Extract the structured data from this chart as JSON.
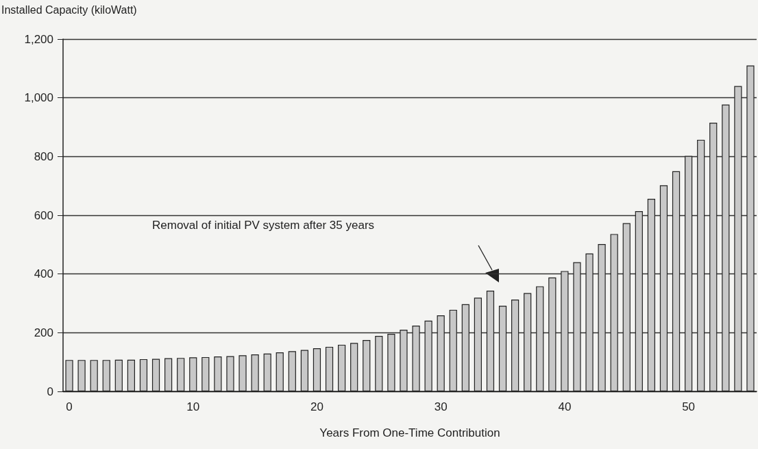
{
  "chart_data": {
    "type": "bar",
    "ylabel": "Installed Capacity (kiloWatt)",
    "xlabel": "Years From One-Time Contribution",
    "categories": [
      "0",
      null,
      null,
      null,
      null,
      null,
      null,
      null,
      null,
      null,
      "10",
      null,
      null,
      null,
      null,
      null,
      null,
      null,
      null,
      null,
      "20",
      null,
      null,
      null,
      null,
      null,
      null,
      null,
      null,
      null,
      "30",
      null,
      null,
      null,
      null,
      null,
      null,
      null,
      null,
      null,
      "40",
      null,
      null,
      null,
      null,
      null,
      null,
      null,
      null,
      null,
      "50",
      null,
      null,
      null,
      null,
      null
    ],
    "values": [
      107,
      107,
      107,
      107,
      108,
      108,
      110,
      111,
      113,
      114,
      116,
      117,
      119,
      120,
      123,
      126,
      129,
      133,
      137,
      141,
      147,
      152,
      159,
      165,
      175,
      189,
      196,
      210,
      224,
      241,
      259,
      278,
      297,
      319,
      343,
      292,
      313,
      335,
      358,
      388,
      410,
      440,
      470,
      502,
      536,
      573,
      614,
      656,
      702,
      750,
      802,
      857,
      915,
      977,
      1040,
      1110
    ],
    "color": "#c8c8c8",
    "ylim": [
      0,
      1200
    ],
    "yticks": [
      0,
      200,
      400,
      600,
      800,
      {
        "value": 1000,
        "label": "1,000"
      },
      {
        "value": 1200,
        "label": "1,200"
      }
    ],
    "grid": "y",
    "annotations": [
      "Removal of initial PV system after 35 years"
    ]
  }
}
